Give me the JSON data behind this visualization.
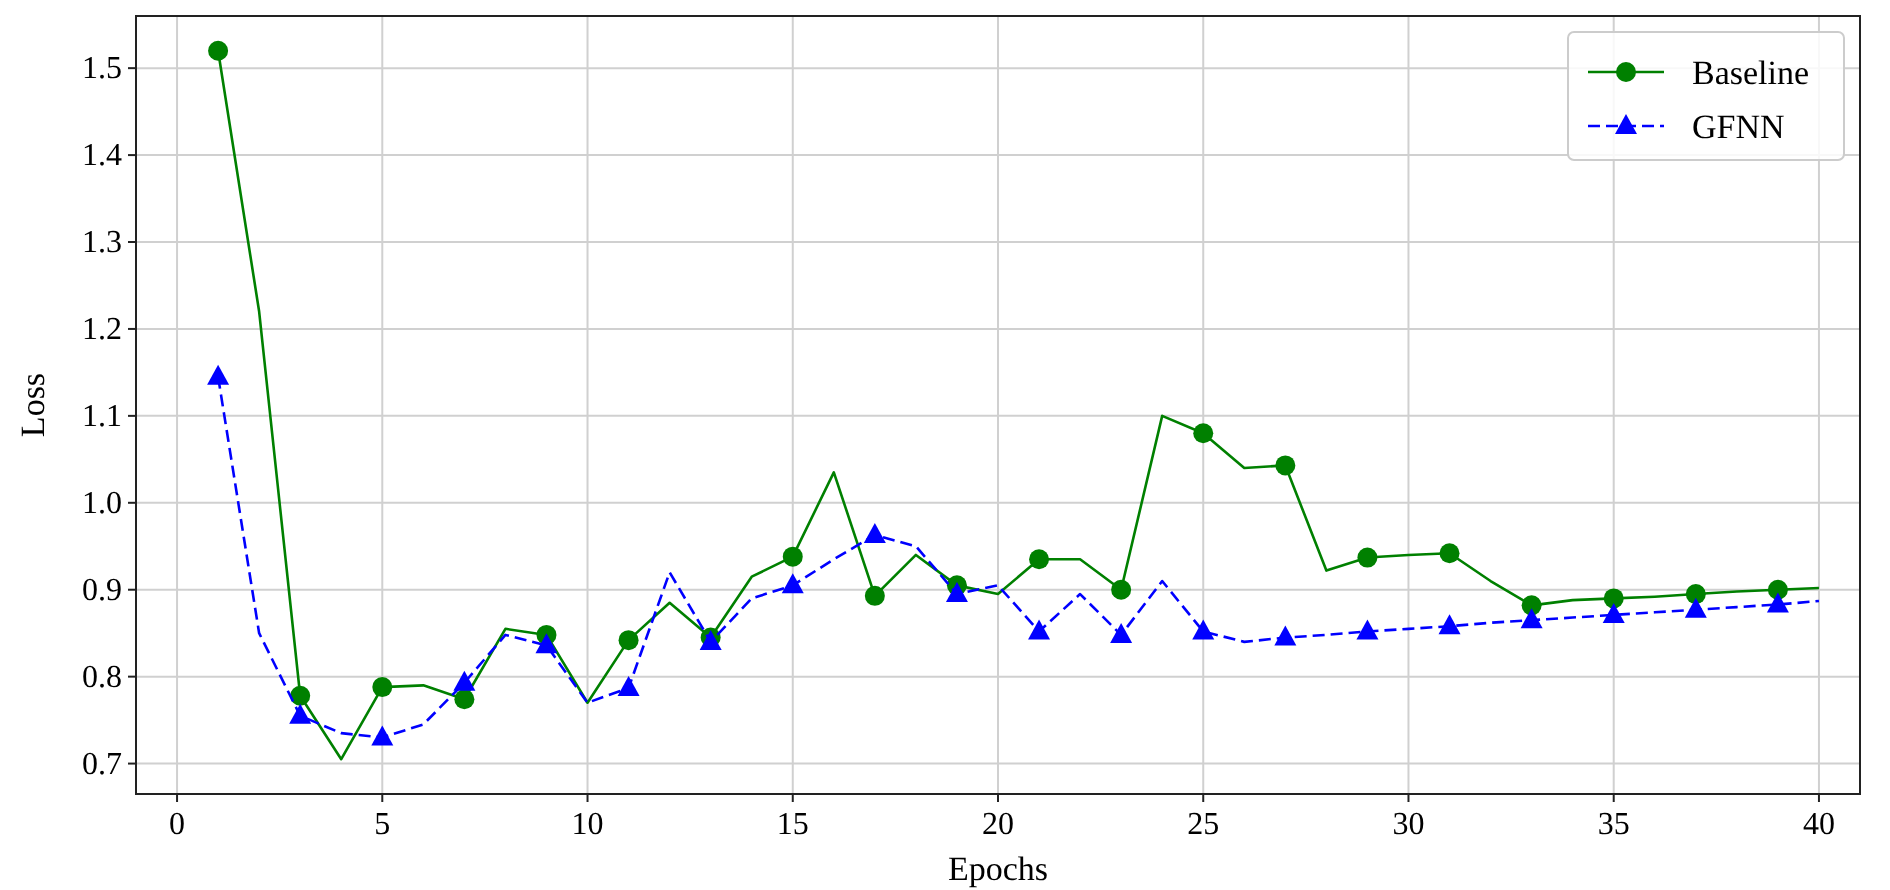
{
  "chart_data": {
    "type": "line",
    "xlabel": "Epochs",
    "ylabel": "Loss",
    "x": [
      1,
      2,
      3,
      4,
      5,
      6,
      7,
      8,
      9,
      10,
      11,
      12,
      13,
      14,
      15,
      16,
      17,
      18,
      19,
      20,
      21,
      22,
      23,
      24,
      25,
      26,
      27,
      28,
      29,
      30,
      31,
      32,
      33,
      34,
      35,
      36,
      37,
      38,
      39,
      40
    ],
    "series": [
      {
        "name": "Baseline",
        "color": "#008000",
        "marker": "circle",
        "line_style": "solid",
        "values": [
          1.52,
          1.22,
          0.778,
          0.705,
          0.788,
          0.79,
          0.774,
          0.855,
          0.848,
          0.77,
          0.842,
          0.885,
          0.845,
          0.915,
          0.938,
          1.035,
          0.893,
          0.94,
          0.905,
          0.895,
          0.935,
          0.935,
          0.9,
          1.1,
          1.08,
          1.04,
          1.043,
          0.922,
          0.937,
          0.94,
          0.942,
          0.91,
          0.882,
          0.888,
          0.89,
          0.892,
          0.895,
          0.898,
          0.9,
          0.902
        ]
      },
      {
        "name": "GFNN",
        "color": "#0000ff",
        "marker": "triangle",
        "line_style": "dashed",
        "values": [
          1.145,
          0.85,
          0.755,
          0.735,
          0.73,
          0.745,
          0.793,
          0.848,
          0.836,
          0.77,
          0.787,
          0.92,
          0.84,
          0.89,
          0.905,
          0.935,
          0.963,
          0.95,
          0.895,
          0.905,
          0.852,
          0.895,
          0.848,
          0.91,
          0.852,
          0.84,
          0.845,
          0.848,
          0.852,
          0.855,
          0.858,
          0.862,
          0.865,
          0.868,
          0.871,
          0.874,
          0.877,
          0.88,
          0.883,
          0.887
        ]
      }
    ],
    "xlim": [
      -1,
      41
    ],
    "xticks": [
      0,
      5,
      10,
      15,
      20,
      25,
      30,
      35,
      40
    ],
    "ylim": [
      0.665,
      1.56
    ],
    "yticks": [
      0.7,
      0.8,
      0.9,
      {
        "value": 1,
        "label": "1.0"
      },
      1.1,
      1.2,
      1.3,
      1.4,
      1.5
    ],
    "grid": true,
    "legend": "top right"
  }
}
